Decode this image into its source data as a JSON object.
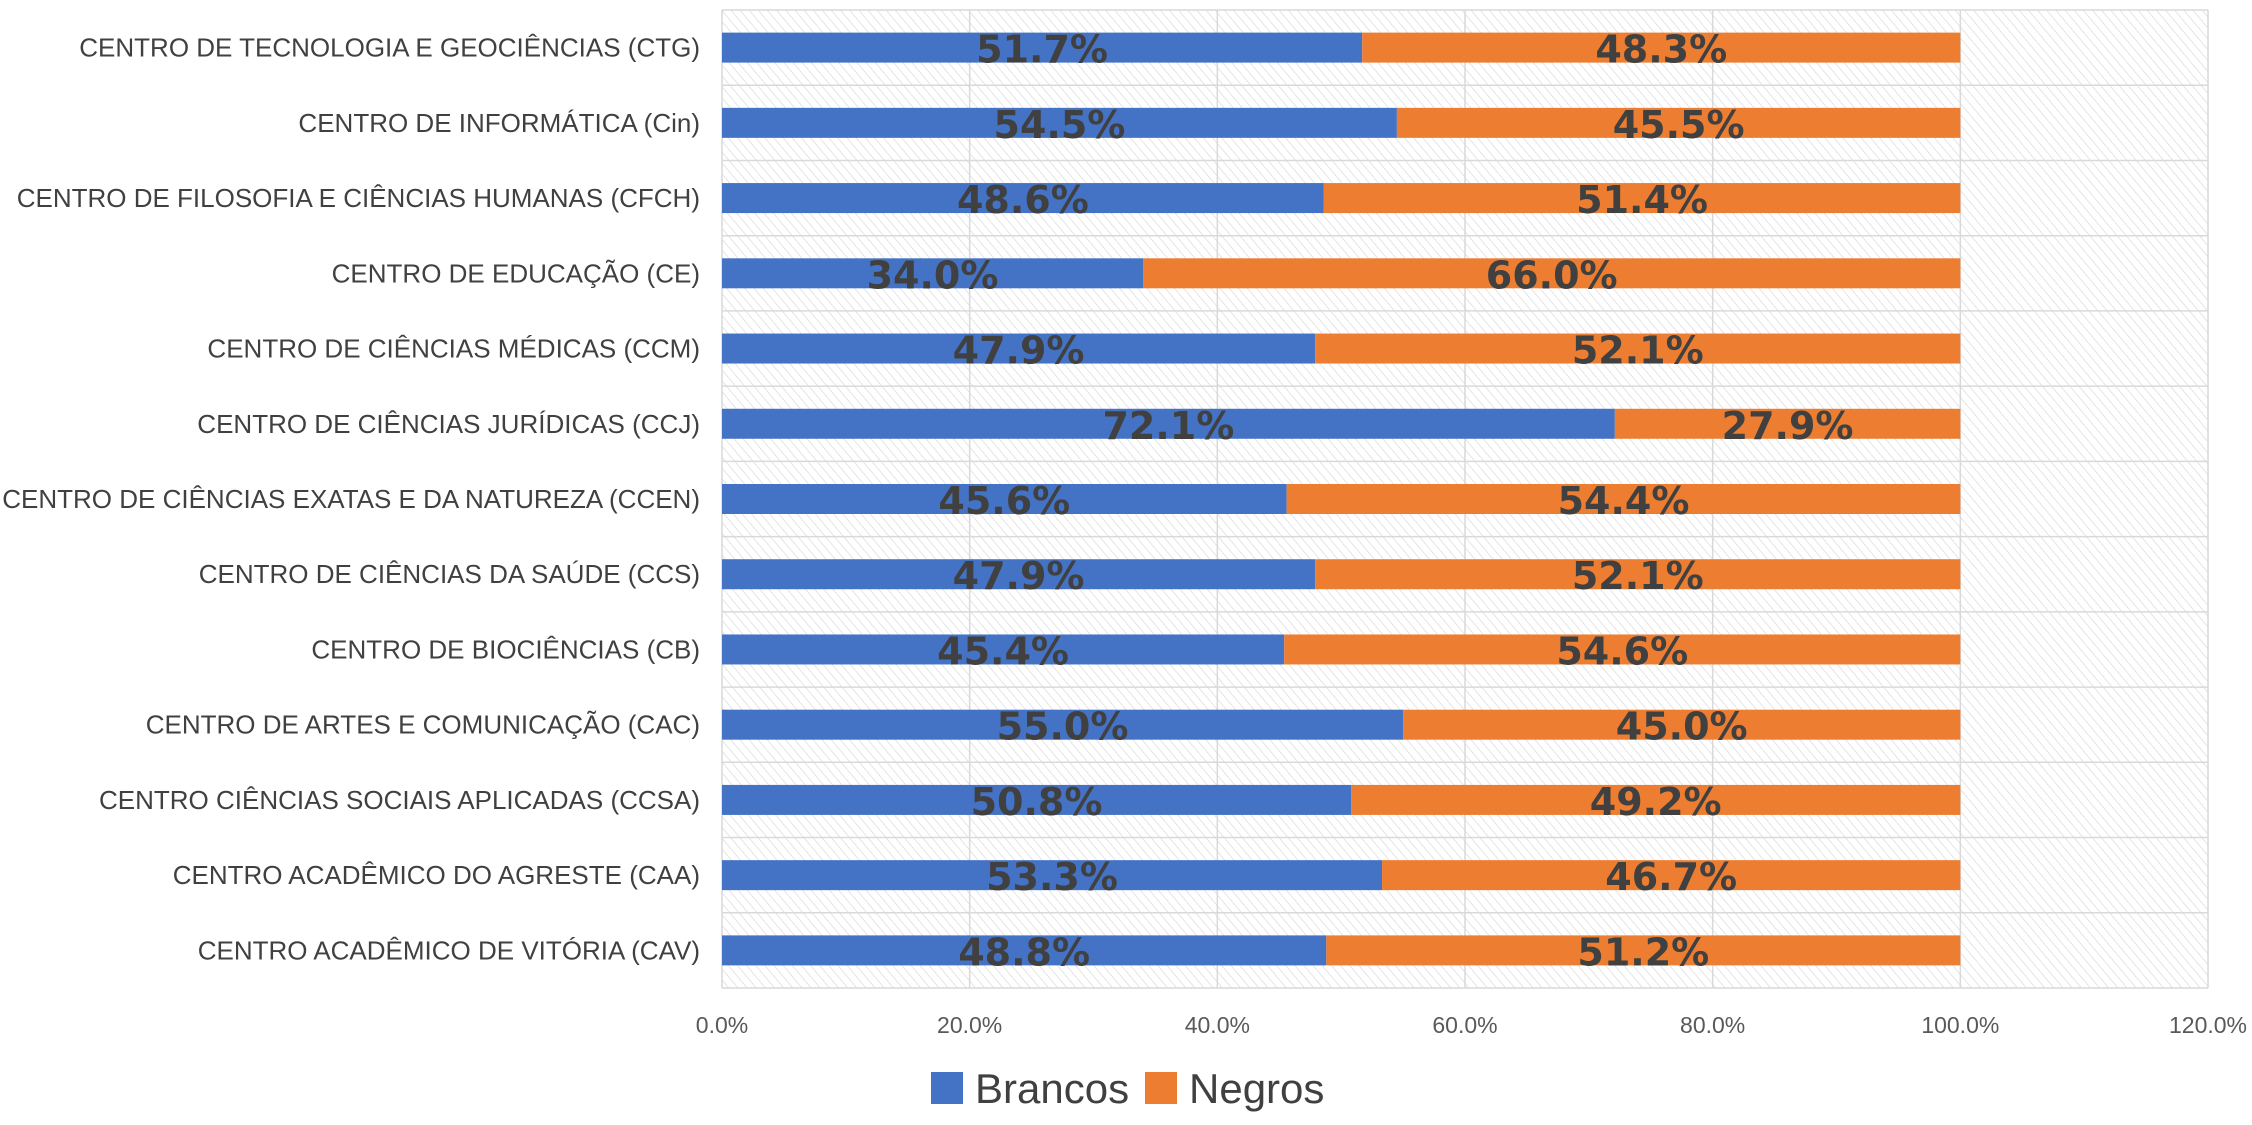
{
  "chart_data": {
    "type": "bar",
    "orientation": "horizontal",
    "stacked": true,
    "categories": [
      "CENTRO DE TECNOLOGIA E GEOCIÊNCIAS (CTG)",
      "CENTRO DE INFORMÁTICA (Cin)",
      "CENTRO DE FILOSOFIA E CIÊNCIAS HUMANAS (CFCH)",
      "CENTRO DE EDUCAÇÃO (CE)",
      "CENTRO DE CIÊNCIAS MÉDICAS (CCM)",
      "CENTRO DE CIÊNCIAS JURÍDICAS (CCJ)",
      "CENTRO DE CIÊNCIAS EXATAS E DA NATUREZA (CCEN)",
      "CENTRO DE CIÊNCIAS DA SAÚDE (CCS)",
      "CENTRO DE BIOCIÊNCIAS (CB)",
      "CENTRO DE ARTES E COMUNICAÇÃO (CAC)",
      "CENTRO CIÊNCIAS SOCIAIS APLICADAS (CCSA)",
      "CENTRO ACADÊMICO DO AGRESTE (CAA)",
      "CENTRO ACADÊMICO DE VITÓRIA (CAV)"
    ],
    "series": [
      {
        "name": "Brancos",
        "color": "#4472C4",
        "values": [
          51.7,
          54.5,
          48.6,
          34.0,
          47.9,
          72.1,
          45.6,
          47.9,
          45.4,
          55.0,
          50.8,
          53.3,
          48.8
        ]
      },
      {
        "name": "Negros",
        "color": "#ED7D31",
        "values": [
          48.3,
          45.5,
          51.4,
          66.0,
          52.1,
          27.9,
          54.4,
          52.1,
          54.6,
          45.0,
          49.2,
          46.7,
          51.2
        ]
      }
    ],
    "xlim": [
      0,
      120
    ],
    "x_ticks": [
      "0.0%",
      "20.0%",
      "40.0%",
      "60.0%",
      "80.0%",
      "100.0%",
      "120.0%"
    ],
    "value_format": "percent_1dp",
    "title": "",
    "xlabel": "",
    "ylabel": "",
    "grid": true,
    "legend_position": "bottom"
  }
}
